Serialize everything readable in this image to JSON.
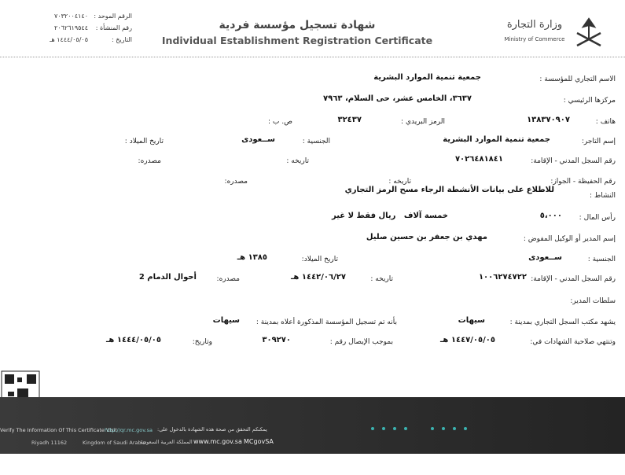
{
  "header": {
    "unified_number_label": "الرقم الموحد :",
    "unified_number": "٧٠٣٢٠٠٤١٤٠",
    "establishment_number_label": "رقم المنشأة :",
    "establishment_number": "٢٠٦٢٦١٩٥٤٤",
    "date_label": "التاريخ :",
    "date": "١٤٤٤/٠٥/٠٥ هـ",
    "title_ar": "شهادة تسجيل مؤسسة فردية",
    "title_en": "Individual Establishment Registration Certificate",
    "ministry_ar": "وزارة التجارة",
    "ministry_en": "Ministry of Commerce"
  },
  "rows": [
    [
      {
        "label": "الاسم التجاري للمؤسسة :",
        "value": "جمعية تنمية الموارد البشرية"
      }
    ],
    [
      {
        "label": "مركزها الرئيسي :",
        "value": "٣٦٣٧، الخامس عشر، حى السلام، ٧٩٦٣"
      }
    ],
    [
      {
        "label": "هاتف :",
        "value": "١٣٨٣٧٠٩٠٧"
      },
      {
        "label": "الرمز البريدي :",
        "value": "٣٢٤٣٧"
      },
      {
        "label": "ص. ب :"
      }
    ],
    [
      {
        "label": "إسم التاجر:",
        "value": "جمعية تنمية الموارد البشرية"
      },
      {
        "label": "الجنسية :",
        "value": "ســعودى"
      },
      {
        "label": "تاريخ الميلاد :"
      }
    ],
    [
      {
        "label": "رقم السجل المدني - الإقامة:",
        "value": "٧٠٢٦٤٨١٨٤١"
      },
      {
        "label": "تاريخه :"
      },
      {
        "label": "مصدره:"
      }
    ],
    [
      {
        "label": "رقم الحفيظة - الجواز:"
      },
      {
        "label": "تاريخه :"
      },
      {
        "label": "مصدره:"
      }
    ],
    [
      {
        "label": "النشاط :",
        "value": "للاطلاع على بيانات الأنشطة الرجاء مسح الرمز التجاري"
      }
    ],
    [
      {
        "label": "رأس المال :",
        "value": "٥،٠٠٠"
      },
      {
        "value": "خمسة آلاف   ريال فقط لا غير"
      }
    ],
    [
      {
        "label": "إسم المدير أو الوكيل المفوض :",
        "value": "مهدي بن جعفر بن حسين صليل"
      }
    ],
    [
      {
        "label": "الجنسية :",
        "value": "ســعودى"
      },
      {
        "label": "تاريخ الميلاد:",
        "value": "١٣٨٥ هـ"
      }
    ],
    [
      {
        "label": "رقم السجل المدني - الإقامة:",
        "value": "١٠٠٦٢٧٤٧٢٢"
      },
      {
        "label": "تاريخه :",
        "value": "١٤٤٢/٠٦/٢٧ هـ"
      },
      {
        "label": "مصدره:",
        "value": "أحوال الدمام 2"
      }
    ],
    [
      {
        "label": "سلطات المدير:"
      }
    ],
    [
      {
        "label": "يشهد مكتب السجل التجاري بمدينة :",
        "value": "سيهات"
      },
      {
        "label": "بأنه تم تسجيل المؤسسة المذكورة أعلاه بمدينة :",
        "value": "سيهات"
      }
    ],
    [
      {
        "label": "وتنتهي صلاحية الشهادات في:",
        "value": "١٤٤٧/٠٥/٠٥ هـ"
      },
      {
        "label": "بموجب الإيصال رقم :",
        "value": "٣٠٩٢٧٠"
      },
      {
        "label": "وتاريخ:",
        "value": "١٤٤٤/٠٥/٠٥ هـ"
      }
    ]
  ],
  "footer": {
    "verify_en": "Verify The Information Of This Certificate Visit",
    "verify_url": "http://qr.mc.gov.sa",
    "verify_ar": "يمكنكم التحقق من صحة هذه الشهادة بالدخول على:",
    "postal": "Riyadh 11162",
    "country_en": "Kingdom of Saudi Arabia",
    "country_ar": "المملكة العربية السعودية",
    "website": "www.mc.gov.sa",
    "social": "MCgovSA"
  }
}
